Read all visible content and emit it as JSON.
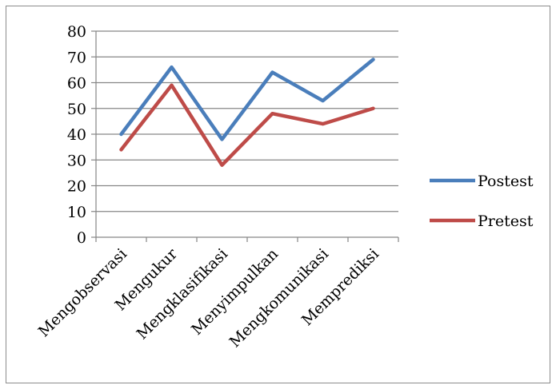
{
  "chart_data": {
    "type": "line",
    "categories": [
      "Mengobservasi",
      "Mengukur",
      "Mengklasifikasi",
      "Menyimpulkan",
      "Mengkomunikasi",
      "Memprediksi"
    ],
    "series": [
      {
        "name": "Postest",
        "values": [
          40,
          66,
          38,
          64,
          53,
          69
        ],
        "color": "#4a7ebb"
      },
      {
        "name": "Pretest",
        "values": [
          34,
          59,
          28,
          48,
          44,
          50
        ],
        "color": "#be4b48"
      }
    ],
    "ylim": [
      0,
      80
    ],
    "yticks": [
      "0",
      "10",
      "20",
      "30",
      "40",
      "50",
      "60",
      "70",
      "80"
    ],
    "grid": true,
    "legend": "right"
  }
}
